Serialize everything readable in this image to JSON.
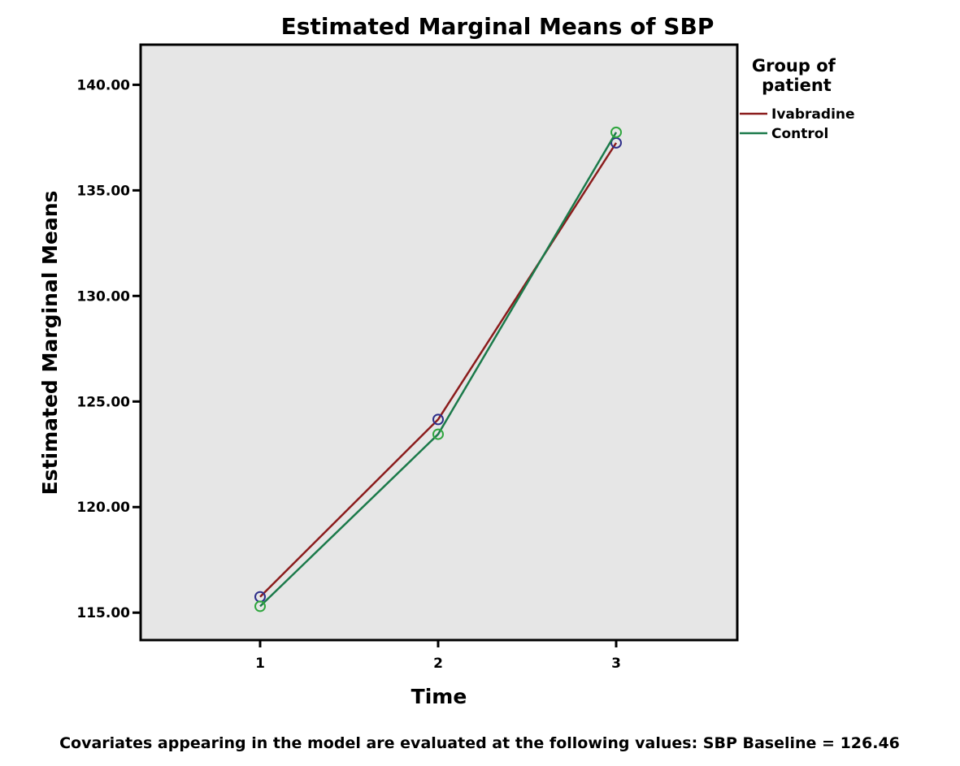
{
  "chart_data": {
    "type": "line",
    "title": "Estimated Marginal Means of SBP",
    "xlabel": "Time",
    "ylabel": "Estimated Marginal Means",
    "categories": [
      "1",
      "2",
      "3"
    ],
    "ylim": [
      113.7,
      141.9
    ],
    "yticks": [
      115,
      120,
      125,
      130,
      135,
      140
    ],
    "ytick_labels": [
      "115.00",
      "120.00",
      "125.00",
      "130.00",
      "135.00",
      "140.00"
    ],
    "grid": false,
    "legend": {
      "title": "Group of patient",
      "placement": "right"
    },
    "series": [
      {
        "name": "Ivabradine",
        "color": "#8b1c1c",
        "marker_color": "#2e2e8a",
        "values": [
          115.75,
          124.15,
          137.25
        ]
      },
      {
        "name": "Control",
        "color": "#1b7a4a",
        "marker_color": "#2fa63e",
        "values": [
          115.3,
          123.45,
          137.75
        ]
      }
    ],
    "footnote": "Covariates appearing in the model are evaluated at the following values: SBP Baseline = 126.46"
  },
  "colors": {
    "plot_background": "#e6e6e6",
    "frame": "#000000"
  }
}
